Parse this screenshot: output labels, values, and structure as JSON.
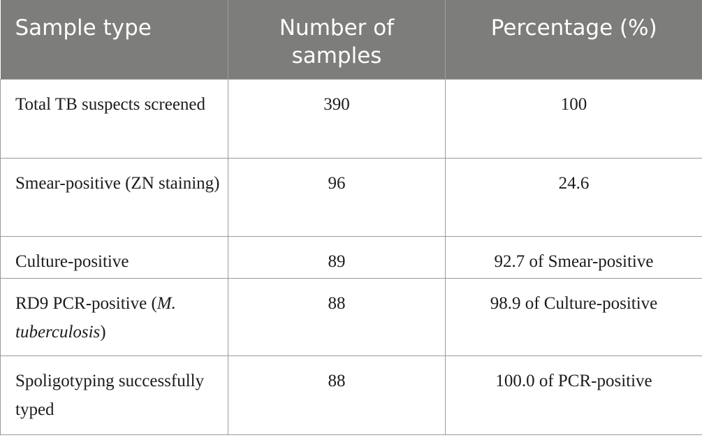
{
  "table": {
    "headers": {
      "sample_type": "Sample type",
      "number_of_samples_line1": "Number of",
      "number_of_samples_line2": "samples",
      "percentage": "Percentage (%)"
    },
    "rows": [
      {
        "type": "Total TB suspects screened",
        "number": "390",
        "percentage": "100"
      },
      {
        "type": "Smear-positive (ZN staining)",
        "number": "96",
        "percentage": "24.6"
      },
      {
        "type": "Culture-positive",
        "number": "89",
        "percentage": "92.7 of Smear-positive"
      },
      {
        "type_prefix": "RD9 PCR-positive (",
        "type_italic": "M. tuberculosis",
        "type_suffix": ")",
        "number": "88",
        "percentage": "98.9 of Culture-positive"
      },
      {
        "type": "Spoligotyping successfully typed",
        "number": "88",
        "percentage": "100.0 of PCR-positive"
      }
    ]
  }
}
